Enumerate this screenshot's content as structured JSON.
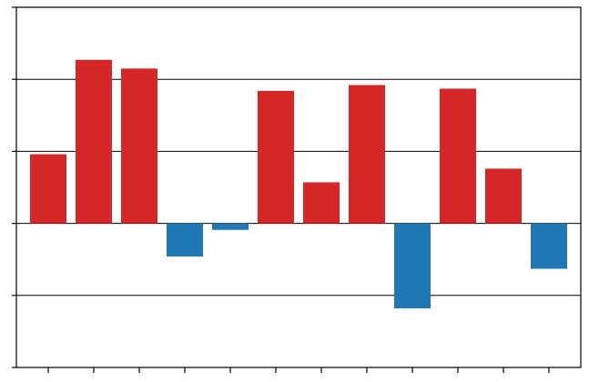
{
  "chart_data": {
    "type": "bar",
    "categories": [
      null,
      null,
      null,
      null,
      null,
      null,
      null,
      null,
      null,
      null,
      null,
      null
    ],
    "values": [
      0.96,
      2.27,
      2.15,
      -0.46,
      -0.09,
      1.84,
      0.57,
      1.92,
      -1.18,
      1.87,
      0.76,
      -0.63
    ],
    "positive_color": "#d62728",
    "negative_color": "#1f77b4",
    "ylim": [
      -2,
      3
    ],
    "yticks": [
      -2,
      -1,
      0,
      1,
      2,
      3
    ],
    "grid": true
  }
}
